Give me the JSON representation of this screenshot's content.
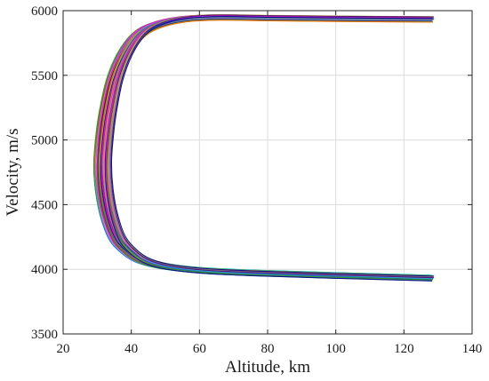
{
  "chart_data": {
    "type": "line",
    "title": "",
    "xlabel": "Altitude, km",
    "ylabel": "Velocity, m/s",
    "xlim": [
      20,
      140
    ],
    "ylim": [
      3500,
      6000
    ],
    "xticks": [
      20,
      40,
      60,
      80,
      100,
      120,
      140
    ],
    "yticks": [
      3500,
      4000,
      4500,
      5000,
      5500,
      6000
    ],
    "grid": true,
    "legend": "none",
    "series_count": 60,
    "representative_trajectory": {
      "x": [
        128,
        100,
        80,
        65,
        55,
        47,
        42,
        38,
        35,
        33,
        32,
        31.5,
        32,
        33.5,
        36,
        40,
        44,
        50,
        60,
        75,
        100,
        128
      ],
      "y": [
        5930,
        5935,
        5940,
        5945,
        5930,
        5880,
        5800,
        5650,
        5450,
        5200,
        5000,
        4800,
        4600,
        4400,
        4230,
        4120,
        4060,
        4020,
        3990,
        3970,
        3950,
        3930
      ]
    },
    "altitude_spread_km": [
      -2.5,
      2.5
    ],
    "velocity_spread_mps": [
      -20,
      25
    ],
    "series_colors": [
      "#1f4fd8",
      "#d62728",
      "#2ca02c",
      "#ff7f0e",
      "#9467bd",
      "#17becf",
      "#e377c2",
      "#8c564b",
      "#bcbd22",
      "#7f7f7f",
      "#4b0082",
      "#00008b",
      "#8b0000",
      "#006400",
      "#ff00ff",
      "#00ced1"
    ]
  }
}
